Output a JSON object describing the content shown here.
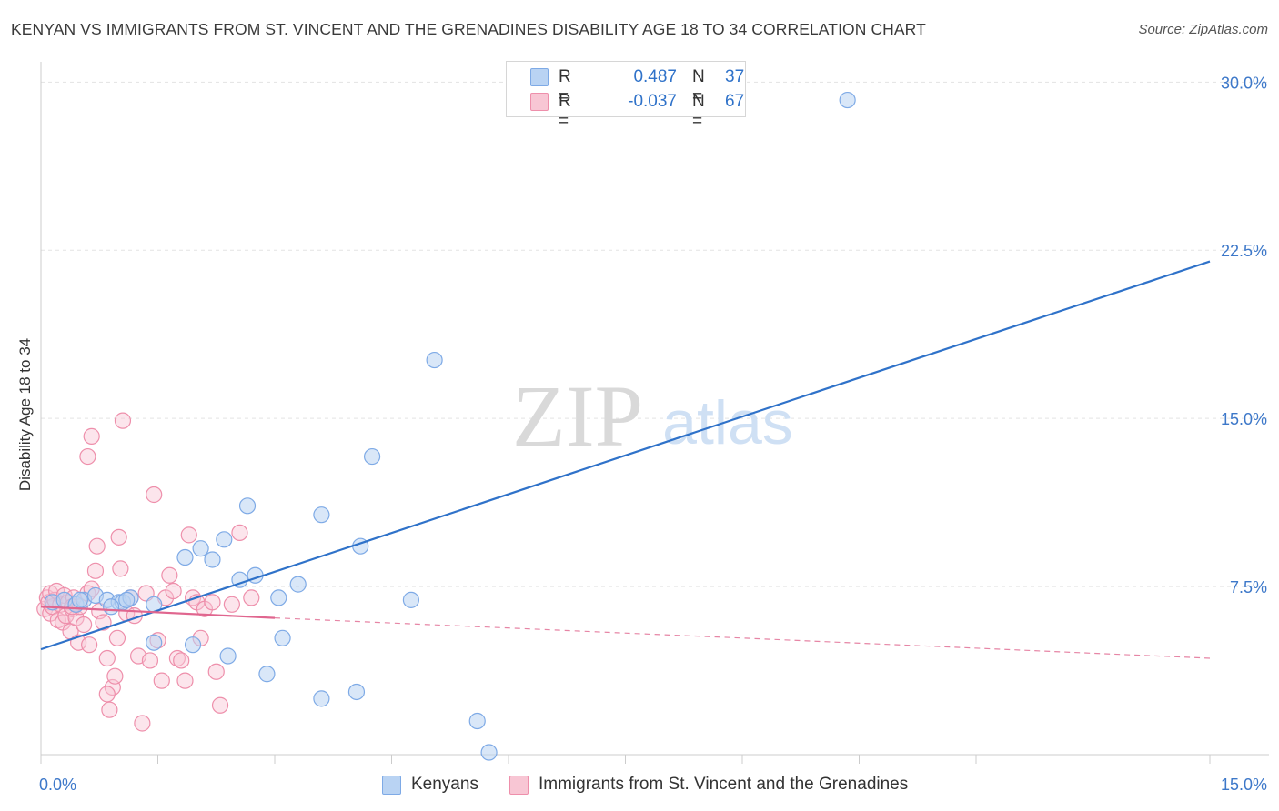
{
  "title": "KENYAN VS IMMIGRANTS FROM ST. VINCENT AND THE GRENADINES DISABILITY AGE 18 TO 34 CORRELATION CHART",
  "source": "Source: ZipAtlas.com",
  "watermark": {
    "zip": "ZIP",
    "atlas": "atlas"
  },
  "colors": {
    "blue_fill": "#b9d3f3",
    "blue_stroke": "#7eaae6",
    "blue_line": "#2f72c9",
    "pink_fill": "#f8c6d4",
    "pink_stroke": "#ee8fab",
    "pink_line": "#e0668f",
    "axis_text": "#3d78c9",
    "grid": "#e3e3e3"
  },
  "legend": {
    "rows": [
      {
        "r_label": "R =",
        "r_value": "0.487",
        "n_label": "N =",
        "n_value": "37"
      },
      {
        "r_label": "R =",
        "r_value": "-0.037",
        "n_label": "N =",
        "n_value": "67"
      }
    ]
  },
  "bottom_legend": [
    "Kenyans",
    "Immigrants from St. Vincent and the Grenadines"
  ],
  "chart_data": {
    "type": "scatter",
    "title": "KENYAN VS IMMIGRANTS FROM ST. VINCENT AND THE GRENADINES DISABILITY AGE 18 TO 34 CORRELATION CHART",
    "xlabel": "",
    "ylabel": "Disability Age 18 to 34",
    "xlim": [
      0,
      15
    ],
    "ylim": [
      0,
      30.5
    ],
    "x_tick_labels": [
      "0.0%",
      "15.0%"
    ],
    "y_ticks": [
      7.5,
      15.0,
      22.5,
      30.0
    ],
    "y_tick_labels": [
      "7.5%",
      "15.0%",
      "22.5%",
      "30.0%"
    ],
    "series": [
      {
        "name": "Kenyans",
        "color": "blue",
        "trend": {
          "x": [
            0,
            15
          ],
          "y": [
            4.7,
            22.0
          ],
          "style": "solid"
        },
        "points": [
          [
            0.15,
            6.8
          ],
          [
            0.3,
            6.9
          ],
          [
            0.45,
            6.7
          ],
          [
            0.55,
            6.9
          ],
          [
            0.7,
            7.1
          ],
          [
            0.85,
            6.9
          ],
          [
            1.0,
            6.8
          ],
          [
            1.05,
            6.8
          ],
          [
            1.15,
            7.0
          ],
          [
            1.1,
            6.9
          ],
          [
            1.45,
            6.7
          ],
          [
            0.9,
            6.6
          ],
          [
            1.45,
            5.0
          ],
          [
            1.85,
            8.8
          ],
          [
            1.95,
            4.9
          ],
          [
            2.05,
            9.2
          ],
          [
            2.2,
            8.7
          ],
          [
            2.35,
            9.6
          ],
          [
            2.4,
            4.4
          ],
          [
            2.55,
            7.8
          ],
          [
            2.65,
            11.1
          ],
          [
            2.75,
            8.0
          ],
          [
            2.9,
            3.6
          ],
          [
            3.05,
            7.0
          ],
          [
            3.1,
            5.2
          ],
          [
            3.3,
            7.6
          ],
          [
            3.6,
            2.5
          ],
          [
            3.6,
            10.7
          ],
          [
            4.05,
            2.8
          ],
          [
            4.1,
            9.3
          ],
          [
            4.25,
            13.3
          ],
          [
            4.75,
            6.9
          ],
          [
            5.05,
            17.6
          ],
          [
            5.6,
            1.5
          ],
          [
            5.75,
            0.1
          ],
          [
            10.35,
            29.2
          ],
          [
            0.5,
            6.9
          ]
        ]
      },
      {
        "name": "Immigrants from St. Vincent and the Grenadines",
        "color": "pink",
        "trend": {
          "x": [
            0,
            3.0
          ],
          "y": [
            6.6,
            6.1
          ],
          "style": "solid",
          "extended": {
            "x": [
              3.0,
              15
            ],
            "y": [
              6.1,
              4.3
            ],
            "style": "dashed"
          }
        },
        "points": [
          [
            0.05,
            6.5
          ],
          [
            0.08,
            7.0
          ],
          [
            0.1,
            6.8
          ],
          [
            0.12,
            7.2
          ],
          [
            0.12,
            6.3
          ],
          [
            0.15,
            6.6
          ],
          [
            0.18,
            6.9
          ],
          [
            0.2,
            7.3
          ],
          [
            0.22,
            6.0
          ],
          [
            0.25,
            6.7
          ],
          [
            0.28,
            5.9
          ],
          [
            0.3,
            7.1
          ],
          [
            0.32,
            6.2
          ],
          [
            0.35,
            6.8
          ],
          [
            0.38,
            5.5
          ],
          [
            0.4,
            6.5
          ],
          [
            0.42,
            7.0
          ],
          [
            0.45,
            6.1
          ],
          [
            0.48,
            5.0
          ],
          [
            0.5,
            6.6
          ],
          [
            0.55,
            5.8
          ],
          [
            0.6,
            7.2
          ],
          [
            0.62,
            4.9
          ],
          [
            0.65,
            7.4
          ],
          [
            0.7,
            8.2
          ],
          [
            0.72,
            9.3
          ],
          [
            0.75,
            6.4
          ],
          [
            0.8,
            5.9
          ],
          [
            0.85,
            4.3
          ],
          [
            0.88,
            2.0
          ],
          [
            0.92,
            3.0
          ],
          [
            0.95,
            3.5
          ],
          [
            0.98,
            5.2
          ],
          [
            1.0,
            9.7
          ],
          [
            1.02,
            8.3
          ],
          [
            1.05,
            14.9
          ],
          [
            1.1,
            6.3
          ],
          [
            1.15,
            7.0
          ],
          [
            1.2,
            6.2
          ],
          [
            1.25,
            4.4
          ],
          [
            1.3,
            1.4
          ],
          [
            1.35,
            7.2
          ],
          [
            1.4,
            4.2
          ],
          [
            1.45,
            11.6
          ],
          [
            1.5,
            5.1
          ],
          [
            1.55,
            3.3
          ],
          [
            1.6,
            7.0
          ],
          [
            1.65,
            8.0
          ],
          [
            1.7,
            7.3
          ],
          [
            1.75,
            4.3
          ],
          [
            1.8,
            4.2
          ],
          [
            1.85,
            3.3
          ],
          [
            1.9,
            9.8
          ],
          [
            1.95,
            7.0
          ],
          [
            2.0,
            6.8
          ],
          [
            2.05,
            5.2
          ],
          [
            2.1,
            6.5
          ],
          [
            2.2,
            6.8
          ],
          [
            2.25,
            3.7
          ],
          [
            2.3,
            2.2
          ],
          [
            2.45,
            6.7
          ],
          [
            2.55,
            9.9
          ],
          [
            2.7,
            7.0
          ],
          [
            0.6,
            13.3
          ],
          [
            0.65,
            14.2
          ],
          [
            0.85,
            2.7
          ],
          [
            0.4,
            6.6
          ]
        ]
      }
    ]
  }
}
